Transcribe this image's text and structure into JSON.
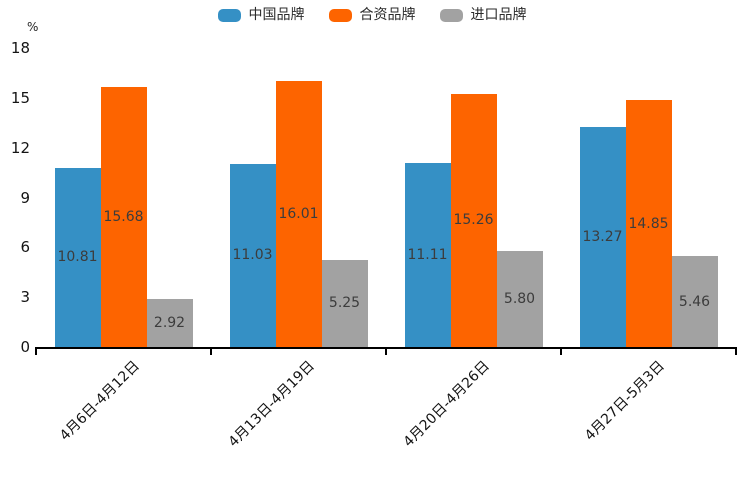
{
  "chart_data": {
    "type": "bar",
    "title": "",
    "xlabel": "",
    "ylabel": "%",
    "ylim": [
      0,
      18
    ],
    "y_ticks": [
      0,
      3,
      6,
      9,
      12,
      15,
      18
    ],
    "grid": false,
    "legend_position": "top-center",
    "value_labels": "inside-center, 2 decimals",
    "categories": [
      "4月6日-4月12日",
      "4月13日-4月19日",
      "4月20日-4月26日",
      "4月27日-5月3日"
    ],
    "series": [
      {
        "name": "中国品牌",
        "color": "#3590c5",
        "values": [
          10.81,
          11.03,
          11.11,
          13.27
        ]
      },
      {
        "name": "合资品牌",
        "color": "#fd6400",
        "values": [
          15.68,
          16.01,
          15.26,
          14.85
        ]
      },
      {
        "name": "进口品牌",
        "color": "#a2a2a2",
        "values": [
          2.92,
          5.25,
          5.8,
          5.46
        ]
      }
    ],
    "colors": {
      "axis": "#000000",
      "tick_label": "#141414",
      "bar_value_label": "#3c3c3c",
      "legend_text": "#2b2b2b",
      "background": "#ffffff"
    }
  }
}
